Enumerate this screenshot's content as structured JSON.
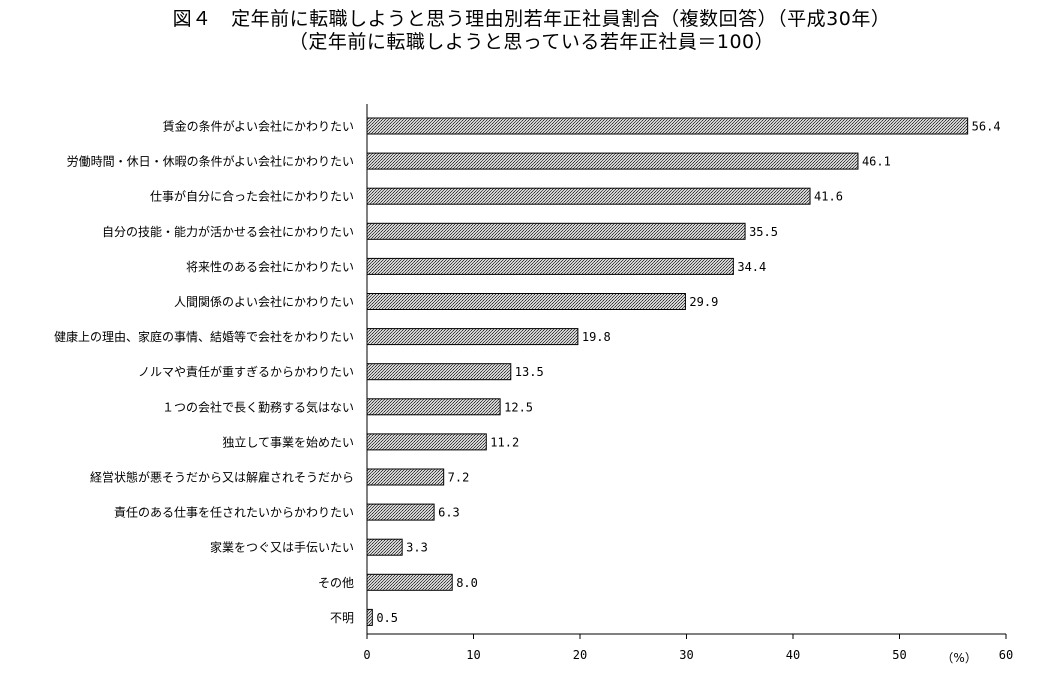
{
  "header": {
    "title": "図４　定年前に転職しようと思う理由別若年正社員割合（複数回答）（平成30年）",
    "subtitle": "（定年前に転職しようと思っている若年正社員＝100）"
  },
  "chart_data": {
    "type": "bar",
    "orientation": "horizontal",
    "title": "図４　定年前に転職しようと思う理由別若年正社員割合（複数回答）（平成30年）",
    "subtitle": "（定年前に転職しようと思っている若年正社員＝100）",
    "categories": [
      "賃金の条件がよい会社にかわりたい",
      "労働時間・休日・休暇の条件がよい会社にかわりたい",
      "仕事が自分に合った会社にかわりたい",
      "自分の技能・能力が活かせる会社にかわりたい",
      "将来性のある会社にかわりたい",
      "人間関係のよい会社にかわりたい",
      "健康上の理由、家庭の事情、結婚等で会社をかわりたい",
      "ノルマや責任が重すぎるからかわりたい",
      "１つの会社で長く勤務する気はない",
      "独立して事業を始めたい",
      "経営状態が悪そうだから又は解雇されそうだから",
      "責任のある仕事を任されたいからかわりたい",
      "家業をつぐ又は手伝いたい",
      "その他",
      "不明"
    ],
    "values": [
      56.4,
      46.1,
      41.6,
      35.5,
      34.4,
      29.9,
      19.8,
      13.5,
      12.5,
      11.2,
      7.2,
      6.3,
      3.3,
      8.0,
      0.5
    ],
    "value_labels": [
      "56.4",
      "46.1",
      "41.6",
      "35.5",
      "34.4",
      "29.9",
      "19.8",
      "13.5",
      "12.5",
      "11.2",
      "7.2",
      "6.3",
      "3.3",
      "8.0",
      "0.5"
    ],
    "xlim": [
      0,
      60
    ],
    "x_ticks": [
      "0",
      "10",
      "20",
      "30",
      "40",
      "50",
      "60"
    ],
    "x_unit": "（%）",
    "grid": false,
    "legend": "none",
    "bar_fill": "dotted gray hatch",
    "bar_stroke": "#000000"
  }
}
